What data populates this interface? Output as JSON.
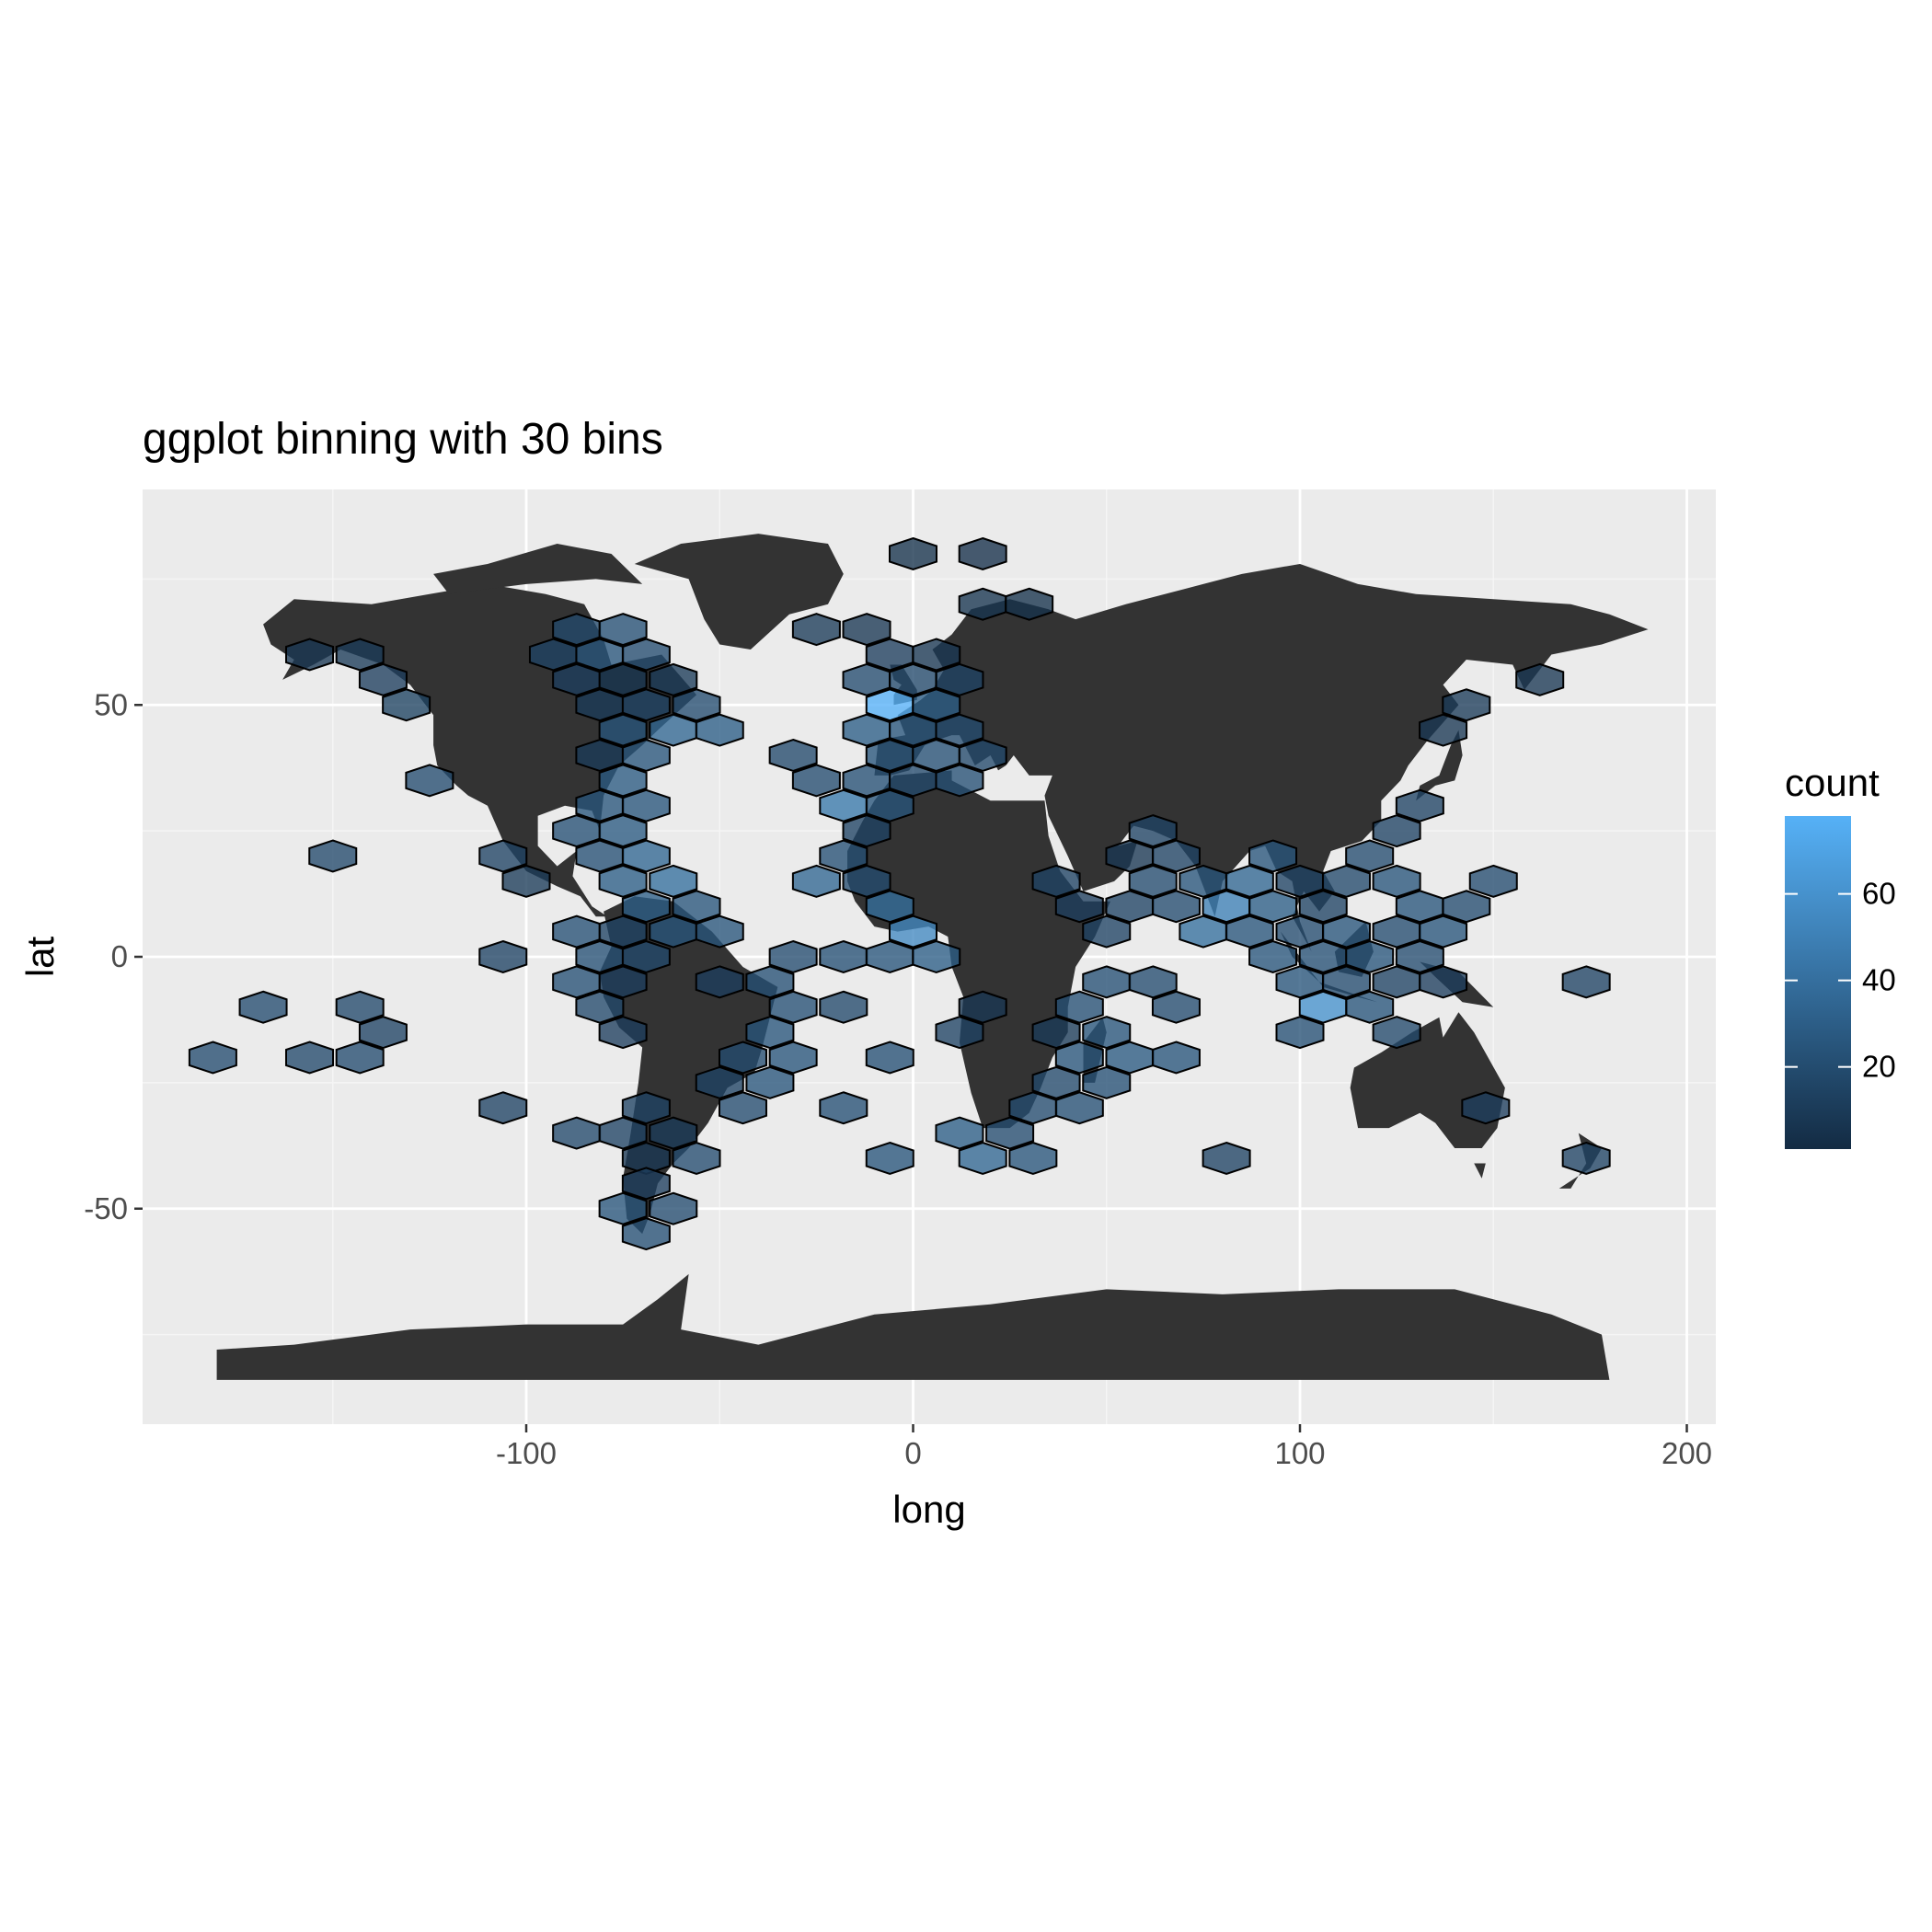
{
  "chart_data": {
    "type": "heatmap",
    "subtype": "hexbin",
    "title": "ggplot binning with 30 bins",
    "xlabel": "long",
    "ylabel": "lat",
    "xlim": [
      -200,
      209
    ],
    "ylim": [
      -93,
      92
    ],
    "x_ticks": [
      -100,
      0,
      100,
      200
    ],
    "y_ticks": [
      -50,
      0,
      50
    ],
    "grid": true,
    "legend": {
      "title": "count",
      "position": "right",
      "ticks": [
        20,
        40,
        60
      ],
      "range": [
        1,
        78
      ],
      "colors": [
        "#132b43",
        "#56b1f7"
      ]
    },
    "background_layer": "world map (land polygons, dark grey)",
    "hex_cells": [
      {
        "x": 0,
        "y": 80,
        "count": 5
      },
      {
        "x": 18,
        "y": 80,
        "count": 4
      },
      {
        "x": 18,
        "y": 70,
        "count": 6
      },
      {
        "x": 30,
        "y": 70,
        "count": 5
      },
      {
        "x": -25,
        "y": 65,
        "count": 10
      },
      {
        "x": -12,
        "y": 65,
        "count": 8
      },
      {
        "x": -87,
        "y": 65,
        "count": 18
      },
      {
        "x": -75,
        "y": 65,
        "count": 22
      },
      {
        "x": -93,
        "y": 60,
        "count": 15
      },
      {
        "x": -81,
        "y": 60,
        "count": 25
      },
      {
        "x": -69,
        "y": 60,
        "count": 20
      },
      {
        "x": -6,
        "y": 60,
        "count": 12
      },
      {
        "x": 6,
        "y": 60,
        "count": 8
      },
      {
        "x": -156,
        "y": 60,
        "count": 8
      },
      {
        "x": -143,
        "y": 60,
        "count": 10
      },
      {
        "x": -137,
        "y": 55,
        "count": 12
      },
      {
        "x": -87,
        "y": 55,
        "count": 12
      },
      {
        "x": -75,
        "y": 55,
        "count": 6
      },
      {
        "x": -62,
        "y": 55,
        "count": 10
      },
      {
        "x": -12,
        "y": 55,
        "count": 20
      },
      {
        "x": 0,
        "y": 55,
        "count": 18
      },
      {
        "x": 12,
        "y": 55,
        "count": 15
      },
      {
        "x": 162,
        "y": 55,
        "count": 8
      },
      {
        "x": -131,
        "y": 50,
        "count": 14
      },
      {
        "x": -81,
        "y": 50,
        "count": 10
      },
      {
        "x": -69,
        "y": 50,
        "count": 15
      },
      {
        "x": -56,
        "y": 50,
        "count": 20
      },
      {
        "x": -6,
        "y": 50,
        "count": 78
      },
      {
        "x": 6,
        "y": 50,
        "count": 30
      },
      {
        "x": 143,
        "y": 50,
        "count": 10
      },
      {
        "x": -75,
        "y": 45,
        "count": 25
      },
      {
        "x": -62,
        "y": 45,
        "count": 35
      },
      {
        "x": -50,
        "y": 45,
        "count": 30
      },
      {
        "x": -12,
        "y": 45,
        "count": 30
      },
      {
        "x": 0,
        "y": 45,
        "count": 25
      },
      {
        "x": 12,
        "y": 45,
        "count": 20
      },
      {
        "x": 137,
        "y": 45,
        "count": 8
      },
      {
        "x": -81,
        "y": 40,
        "count": 10
      },
      {
        "x": -69,
        "y": 40,
        "count": 25
      },
      {
        "x": -31,
        "y": 40,
        "count": 18
      },
      {
        "x": -6,
        "y": 40,
        "count": 25
      },
      {
        "x": 6,
        "y": 40,
        "count": 22
      },
      {
        "x": 18,
        "y": 40,
        "count": 18
      },
      {
        "x": -125,
        "y": 35,
        "count": 20
      },
      {
        "x": -75,
        "y": 35,
        "count": 28
      },
      {
        "x": -25,
        "y": 35,
        "count": 20
      },
      {
        "x": -12,
        "y": 35,
        "count": 22
      },
      {
        "x": 0,
        "y": 35,
        "count": 18
      },
      {
        "x": 12,
        "y": 35,
        "count": 22
      },
      {
        "x": -81,
        "y": 30,
        "count": 25
      },
      {
        "x": -69,
        "y": 30,
        "count": 25
      },
      {
        "x": -18,
        "y": 30,
        "count": 45
      },
      {
        "x": -6,
        "y": 30,
        "count": 25
      },
      {
        "x": 131,
        "y": 30,
        "count": 15
      },
      {
        "x": -87,
        "y": 25,
        "count": 22
      },
      {
        "x": -75,
        "y": 25,
        "count": 28
      },
      {
        "x": -12,
        "y": 25,
        "count": 15
      },
      {
        "x": 62,
        "y": 25,
        "count": 15
      },
      {
        "x": 125,
        "y": 25,
        "count": 15
      },
      {
        "x": -150,
        "y": 20,
        "count": 18
      },
      {
        "x": -106,
        "y": 20,
        "count": 15
      },
      {
        "x": -81,
        "y": 20,
        "count": 22
      },
      {
        "x": -69,
        "y": 20,
        "count": 35
      },
      {
        "x": -18,
        "y": 20,
        "count": 22
      },
      {
        "x": 56,
        "y": 20,
        "count": 8
      },
      {
        "x": 68,
        "y": 20,
        "count": 15
      },
      {
        "x": 93,
        "y": 20,
        "count": 25
      },
      {
        "x": 118,
        "y": 20,
        "count": 20
      },
      {
        "x": -100,
        "y": 15,
        "count": 10
      },
      {
        "x": -75,
        "y": 15,
        "count": 30
      },
      {
        "x": -62,
        "y": 15,
        "count": 40
      },
      {
        "x": -25,
        "y": 15,
        "count": 35
      },
      {
        "x": -12,
        "y": 15,
        "count": 20
      },
      {
        "x": 37,
        "y": 15,
        "count": 15
      },
      {
        "x": 62,
        "y": 15,
        "count": 20
      },
      {
        "x": 75,
        "y": 15,
        "count": 25
      },
      {
        "x": 87,
        "y": 15,
        "count": 35
      },
      {
        "x": 100,
        "y": 15,
        "count": 15
      },
      {
        "x": 112,
        "y": 15,
        "count": 18
      },
      {
        "x": 125,
        "y": 15,
        "count": 25
      },
      {
        "x": 150,
        "y": 15,
        "count": 20
      },
      {
        "x": -69,
        "y": 10,
        "count": 30
      },
      {
        "x": -56,
        "y": 10,
        "count": 25
      },
      {
        "x": -6,
        "y": 10,
        "count": 40
      },
      {
        "x": 43,
        "y": 10,
        "count": 12
      },
      {
        "x": 56,
        "y": 10,
        "count": 15
      },
      {
        "x": 68,
        "y": 10,
        "count": 20
      },
      {
        "x": 81,
        "y": 10,
        "count": 50
      },
      {
        "x": 93,
        "y": 10,
        "count": 30
      },
      {
        "x": 106,
        "y": 10,
        "count": 15
      },
      {
        "x": 131,
        "y": 10,
        "count": 25
      },
      {
        "x": 143,
        "y": 10,
        "count": 20
      },
      {
        "x": -87,
        "y": 5,
        "count": 22
      },
      {
        "x": -75,
        "y": 5,
        "count": 15
      },
      {
        "x": -62,
        "y": 5,
        "count": 25
      },
      {
        "x": -50,
        "y": 5,
        "count": 25
      },
      {
        "x": 0,
        "y": 5,
        "count": 55
      },
      {
        "x": 50,
        "y": 5,
        "count": 15
      },
      {
        "x": 75,
        "y": 5,
        "count": 40
      },
      {
        "x": 87,
        "y": 5,
        "count": 25
      },
      {
        "x": 100,
        "y": 5,
        "count": 20
      },
      {
        "x": 112,
        "y": 5,
        "count": 25
      },
      {
        "x": 125,
        "y": 5,
        "count": 20
      },
      {
        "x": 137,
        "y": 5,
        "count": 25
      },
      {
        "x": -106,
        "y": 0,
        "count": 15
      },
      {
        "x": -81,
        "y": 0,
        "count": 22
      },
      {
        "x": -69,
        "y": 0,
        "count": 18
      },
      {
        "x": -31,
        "y": 0,
        "count": 20
      },
      {
        "x": -18,
        "y": 0,
        "count": 22
      },
      {
        "x": -6,
        "y": 0,
        "count": 25
      },
      {
        "x": 6,
        "y": 0,
        "count": 30
      },
      {
        "x": 93,
        "y": 0,
        "count": 25
      },
      {
        "x": 106,
        "y": 0,
        "count": 22
      },
      {
        "x": 118,
        "y": 0,
        "count": 25
      },
      {
        "x": 131,
        "y": 0,
        "count": 20
      },
      {
        "x": -87,
        "y": -5,
        "count": 22
      },
      {
        "x": -75,
        "y": -5,
        "count": 12
      },
      {
        "x": -50,
        "y": -5,
        "count": 12
      },
      {
        "x": -37,
        "y": -5,
        "count": 22
      },
      {
        "x": 50,
        "y": -5,
        "count": 22
      },
      {
        "x": 62,
        "y": -5,
        "count": 20
      },
      {
        "x": 100,
        "y": -5,
        "count": 25
      },
      {
        "x": 112,
        "y": -5,
        "count": 20
      },
      {
        "x": 125,
        "y": -5,
        "count": 15
      },
      {
        "x": 137,
        "y": -5,
        "count": 12
      },
      {
        "x": 174,
        "y": -5,
        "count": 15
      },
      {
        "x": -168,
        "y": -10,
        "count": 20
      },
      {
        "x": -143,
        "y": -10,
        "count": 18
      },
      {
        "x": -81,
        "y": -10,
        "count": 18
      },
      {
        "x": -31,
        "y": -10,
        "count": 22
      },
      {
        "x": -18,
        "y": -10,
        "count": 18
      },
      {
        "x": 18,
        "y": -10,
        "count": 8
      },
      {
        "x": 43,
        "y": -10,
        "count": 22
      },
      {
        "x": 68,
        "y": -10,
        "count": 20
      },
      {
        "x": 106,
        "y": -10,
        "count": 60
      },
      {
        "x": 118,
        "y": -10,
        "count": 25
      },
      {
        "x": -137,
        "y": -15,
        "count": 15
      },
      {
        "x": -75,
        "y": -15,
        "count": 12
      },
      {
        "x": -37,
        "y": -15,
        "count": 25
      },
      {
        "x": 12,
        "y": -15,
        "count": 15
      },
      {
        "x": 37,
        "y": -15,
        "count": 10
      },
      {
        "x": 50,
        "y": -15,
        "count": 25
      },
      {
        "x": 100,
        "y": -15,
        "count": 22
      },
      {
        "x": 125,
        "y": -15,
        "count": 18
      },
      {
        "x": -181,
        "y": -20,
        "count": 20
      },
      {
        "x": -156,
        "y": -20,
        "count": 18
      },
      {
        "x": -143,
        "y": -20,
        "count": 20
      },
      {
        "x": -6,
        "y": -20,
        "count": 22
      },
      {
        "x": -44,
        "y": -20,
        "count": 20
      },
      {
        "x": -31,
        "y": -20,
        "count": 25
      },
      {
        "x": 43,
        "y": -20,
        "count": 25
      },
      {
        "x": 56,
        "y": -20,
        "count": 28
      },
      {
        "x": 68,
        "y": -20,
        "count": 25
      },
      {
        "x": -50,
        "y": -25,
        "count": 15
      },
      {
        "x": -37,
        "y": -25,
        "count": 25
      },
      {
        "x": 37,
        "y": -25,
        "count": 18
      },
      {
        "x": 50,
        "y": -25,
        "count": 22
      },
      {
        "x": -106,
        "y": -30,
        "count": 15
      },
      {
        "x": -69,
        "y": -30,
        "count": 15
      },
      {
        "x": -44,
        "y": -30,
        "count": 20
      },
      {
        "x": -18,
        "y": -30,
        "count": 22
      },
      {
        "x": 31,
        "y": -30,
        "count": 20
      },
      {
        "x": 43,
        "y": -30,
        "count": 22
      },
      {
        "x": 148,
        "y": -30,
        "count": 12
      },
      {
        "x": -87,
        "y": -35,
        "count": 18
      },
      {
        "x": -75,
        "y": -35,
        "count": 15
      },
      {
        "x": -62,
        "y": -35,
        "count": 10
      },
      {
        "x": 12,
        "y": -35,
        "count": 30
      },
      {
        "x": 25,
        "y": -35,
        "count": 20
      },
      {
        "x": -69,
        "y": -40,
        "count": 8
      },
      {
        "x": -56,
        "y": -40,
        "count": 20
      },
      {
        "x": -6,
        "y": -40,
        "count": 25
      },
      {
        "x": 18,
        "y": -40,
        "count": 35
      },
      {
        "x": 31,
        "y": -40,
        "count": 25
      },
      {
        "x": 81,
        "y": -40,
        "count": 15
      },
      {
        "x": 174,
        "y": -40,
        "count": 15
      },
      {
        "x": -69,
        "y": -45,
        "count": 12
      },
      {
        "x": -75,
        "y": -50,
        "count": 25
      },
      {
        "x": -62,
        "y": -50,
        "count": 20
      },
      {
        "x": -69,
        "y": -55,
        "count": 22
      }
    ]
  }
}
